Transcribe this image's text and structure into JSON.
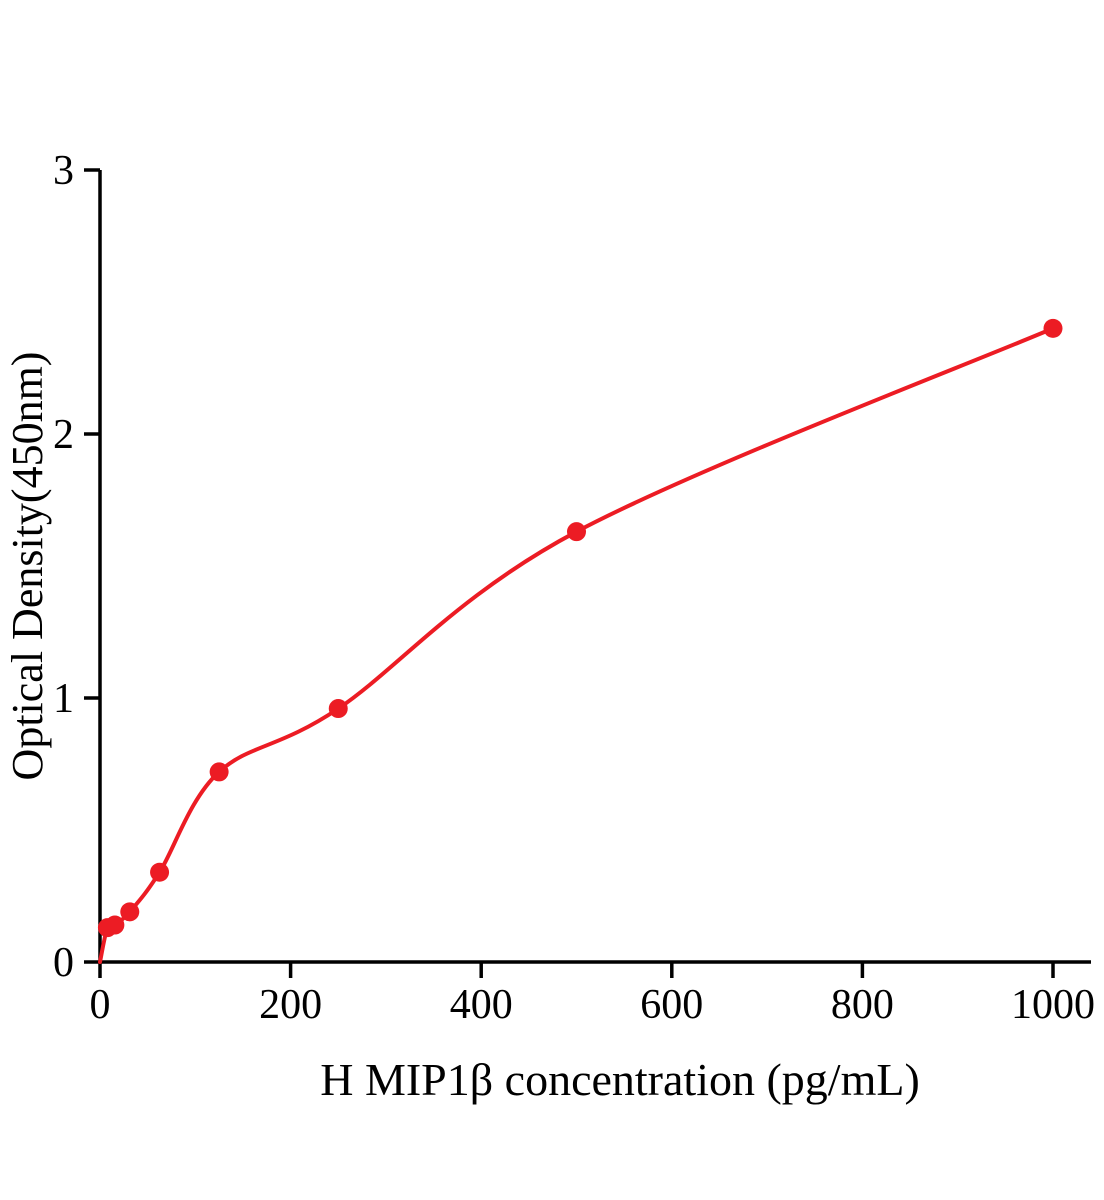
{
  "chart_data": {
    "type": "scatter",
    "title": "",
    "xlabel": "H MIP1β concentration (pg/mL)",
    "ylabel": "Optical Density(450nm)",
    "x": [
      7.8,
      15.6,
      31.25,
      62.5,
      125,
      250,
      500,
      1000
    ],
    "y": [
      0.13,
      0.14,
      0.19,
      0.34,
      0.72,
      0.96,
      1.63,
      2.4
    ],
    "curve_start": [
      0,
      0
    ],
    "xlim": [
      0,
      1000
    ],
    "ylim": [
      0,
      3
    ],
    "xticks": [
      "0",
      "200",
      "400",
      "600",
      "800",
      "1000"
    ],
    "yticks": [
      "0",
      "1",
      "2",
      "3"
    ],
    "grid": false,
    "legend": null,
    "marker_radius": 9.5,
    "colors": {
      "curve": "#ec1c24",
      "points": "#ec1c24",
      "axis": "#000000",
      "text": "#000000"
    }
  }
}
